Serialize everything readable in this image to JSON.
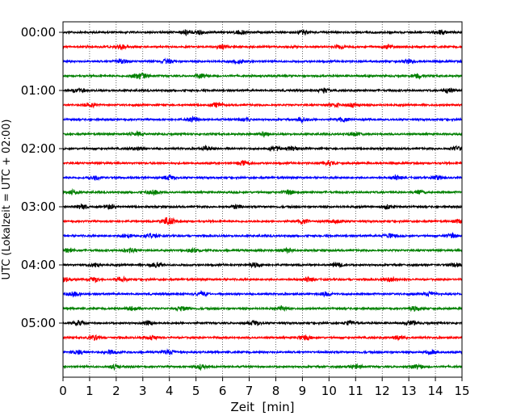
{
  "chart_data": {
    "type": "line",
    "title": "",
    "xlabel": "Zeit  [min]",
    "ylabel": "UTC (Lokalzeit = UTC + 02:00)",
    "xlim": [
      0,
      15
    ],
    "x_ticks": [
      0,
      1,
      2,
      3,
      4,
      5,
      6,
      7,
      8,
      9,
      10,
      11,
      12,
      13,
      14,
      15
    ],
    "x_tick_labels": [
      "0",
      "1",
      "2",
      "3",
      "4",
      "5",
      "6",
      "7",
      "8",
      "9",
      "10",
      "11",
      "12",
      "13",
      "14",
      "15"
    ],
    "y_tick_labels": [
      "00:00",
      "01:00",
      "02:00",
      "03:00",
      "04:00",
      "05:00"
    ],
    "minutes_per_trace": 15,
    "grid": "vertical dotted",
    "color_cycle": [
      "#000000",
      "#ff0000",
      "#0000ff",
      "#008000"
    ],
    "traces": [
      {
        "start": "00:00",
        "color": "#000000",
        "bursts": [
          4.6,
          5.1,
          6.7,
          9.0,
          14.2
        ]
      },
      {
        "start": "00:15",
        "color": "#ff0000",
        "bursts": [
          2.2,
          6.0,
          10.4,
          12.2
        ]
      },
      {
        "start": "00:30",
        "color": "#0000ff",
        "bursts": [
          2.2,
          3.9,
          6.6,
          13.0
        ]
      },
      {
        "start": "00:45",
        "color": "#008000",
        "bursts": [
          2.8,
          3.0,
          5.2,
          13.3
        ]
      },
      {
        "start": "01:00",
        "color": "#000000",
        "bursts": [
          0.6,
          9.8,
          14.5
        ]
      },
      {
        "start": "01:15",
        "color": "#ff0000",
        "bursts": [
          1.0,
          5.8,
          10.2,
          10.9
        ]
      },
      {
        "start": "01:30",
        "color": "#0000ff",
        "bursts": [
          4.9,
          6.8,
          9.0,
          10.5
        ]
      },
      {
        "start": "01:45",
        "color": "#008000",
        "bursts": [
          2.8,
          7.5,
          11.0
        ]
      },
      {
        "start": "02:00",
        "color": "#000000",
        "bursts": [
          2.8,
          5.4,
          8.0,
          8.6,
          14.8
        ]
      },
      {
        "start": "02:15",
        "color": "#ff0000",
        "bursts": [
          6.8,
          10.0
        ]
      },
      {
        "start": "02:30",
        "color": "#0000ff",
        "bursts": [
          1.2,
          4.0,
          12.5,
          14.1
        ]
      },
      {
        "start": "02:45",
        "color": "#008000",
        "bursts": [
          0.4,
          3.4,
          8.5,
          13.4
        ]
      },
      {
        "start": "03:00",
        "color": "#000000",
        "bursts": [
          0.7,
          1.8,
          6.5,
          12.2
        ]
      },
      {
        "start": "03:15",
        "color": "#ff0000",
        "bursts": [
          3.9,
          4.0,
          9.0,
          10.3,
          14.9
        ]
      },
      {
        "start": "03:30",
        "color": "#0000ff",
        "bursts": [
          2.4,
          3.3,
          12.3,
          14.6
        ]
      },
      {
        "start": "03:45",
        "color": "#008000",
        "bursts": [
          0.2,
          2.5,
          4.9,
          8.4
        ]
      },
      {
        "start": "04:00",
        "color": "#000000",
        "bursts": [
          1.2,
          3.5,
          7.2,
          10.3,
          14.8
        ]
      },
      {
        "start": "04:15",
        "color": "#ff0000",
        "bursts": [
          0.1,
          1.2,
          2.2,
          9.2,
          12.3
        ]
      },
      {
        "start": "04:30",
        "color": "#0000ff",
        "bursts": [
          0.4,
          5.2,
          9.9,
          13.8
        ]
      },
      {
        "start": "04:45",
        "color": "#008000",
        "bursts": [
          2.6,
          4.5,
          8.2,
          13.2
        ]
      },
      {
        "start": "05:00",
        "color": "#000000",
        "bursts": [
          0.6,
          3.2,
          7.2,
          10.8,
          13.1
        ]
      },
      {
        "start": "05:15",
        "color": "#ff0000",
        "bursts": [
          1.2,
          3.3,
          9.1,
          12.6
        ]
      },
      {
        "start": "05:30",
        "color": "#0000ff",
        "bursts": [
          0.6,
          1.8,
          4.0,
          13.8
        ]
      },
      {
        "start": "05:45",
        "color": "#008000",
        "bursts": [
          1.9,
          5.2,
          11.0,
          13.3
        ]
      }
    ]
  }
}
